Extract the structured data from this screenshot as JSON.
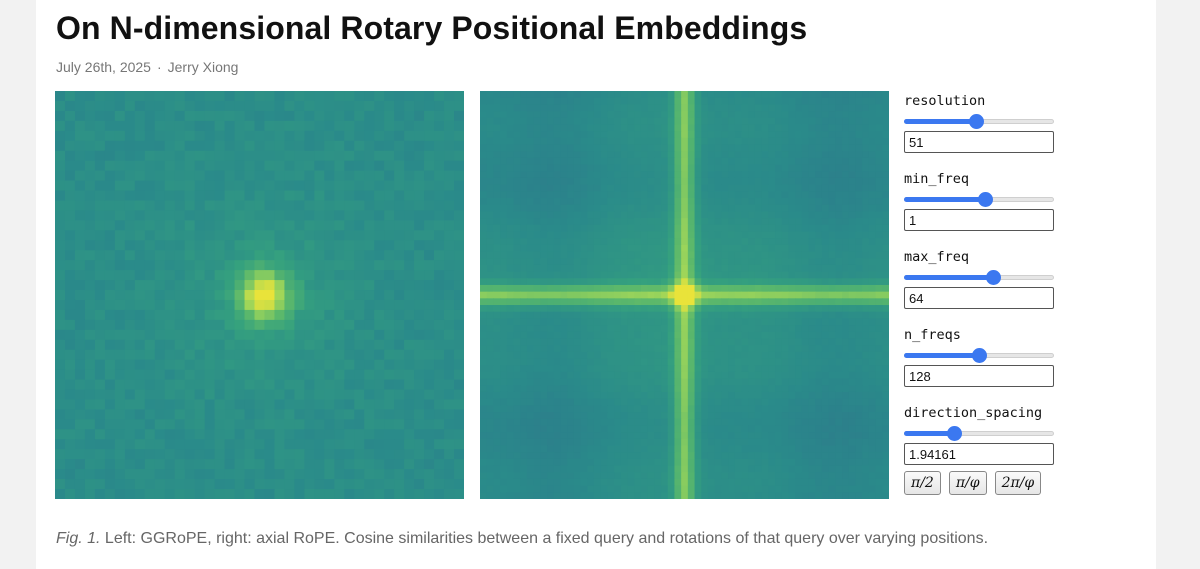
{
  "article": {
    "title": "On N-dimensional Rotary Positional Embeddings",
    "date": "July 26th, 2025",
    "separator": "·",
    "author": "Jerry Xiong"
  },
  "figures": {
    "left": {
      "kind": "heatmap",
      "pattern": "radial-peak",
      "peak_value": 1.0
    },
    "right": {
      "kind": "heatmap",
      "pattern": "cross-peak",
      "peak_value": 1.0
    },
    "colormap": [
      "#2f6e8e",
      "#2a8a8a",
      "#35a17e",
      "#5cb86b",
      "#9dd55a",
      "#e9e33a"
    ]
  },
  "controls": {
    "resolution": {
      "label": "resolution",
      "value": "51",
      "fraction": 0.48
    },
    "min_freq": {
      "label": "min_freq",
      "value": "1",
      "fraction": 0.54
    },
    "max_freq": {
      "label": "max_freq",
      "value": "64",
      "fraction": 0.59
    },
    "n_freqs": {
      "label": "n_freqs",
      "value": "128",
      "fraction": 0.5
    },
    "direction_spacing": {
      "label": "direction_spacing",
      "value": "1.94161",
      "fraction": 0.33
    },
    "buttons": {
      "half_pi": "π/2",
      "pi_phi": "π/φ",
      "two_pi_phi": "2π/φ"
    }
  },
  "caption": {
    "fig": "Fig. 1.",
    "text": "Left: GGRoPE, right: axial RoPE. Cosine similarities between a fixed query and rotations of that query over varying positions."
  }
}
